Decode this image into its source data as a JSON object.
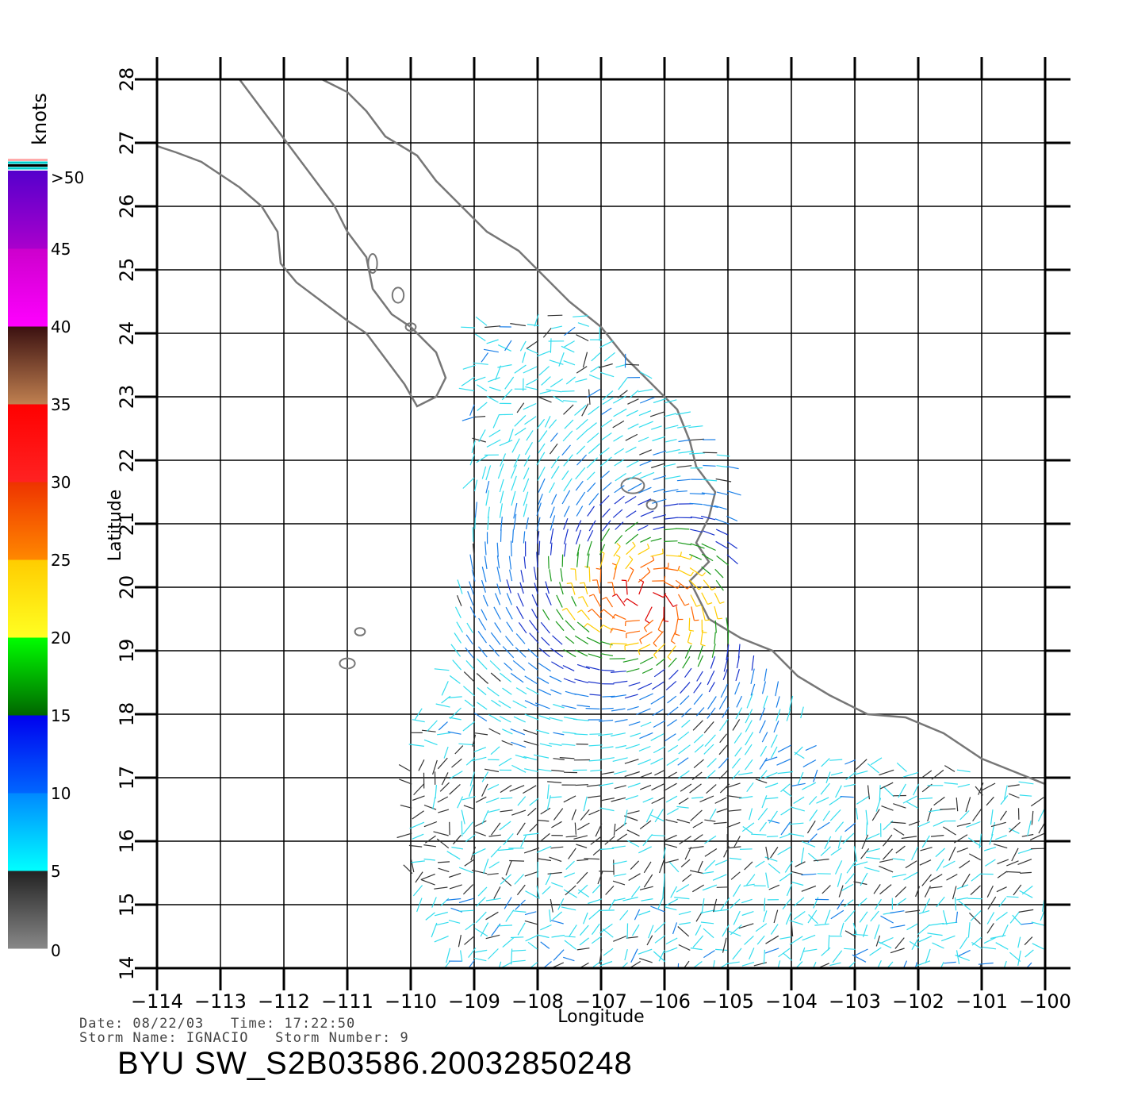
{
  "map": {
    "lon_ticks": [
      -114,
      -113,
      -112,
      -111,
      -110,
      -109,
      -108,
      -107,
      -106,
      -105,
      -104,
      -103,
      -102,
      -101,
      -100
    ],
    "lat_ticks": [
      14,
      15,
      16,
      17,
      18,
      19,
      20,
      21,
      22,
      23,
      24,
      25,
      26,
      27,
      28
    ],
    "lon_labels": [
      "−114",
      "−113",
      "−112",
      "−111",
      "−110",
      "−109",
      "−108",
      "−107",
      "−106",
      "−105",
      "−104",
      "−103",
      "−102",
      "−101",
      "−100"
    ],
    "lat_labels": [
      "14",
      "15",
      "16",
      "17",
      "18",
      "19",
      "20",
      "21",
      "22",
      "23",
      "24",
      "25",
      "26",
      "27",
      "28"
    ],
    "xlabel": "Longitude",
    "ylabel": "Latitude",
    "coastline_color": "#777777"
  },
  "colorbar": {
    "unit_label": "knots",
    "labels": [
      ">50",
      "45",
      "40",
      "35",
      "30",
      "25",
      "20",
      "15",
      "10",
      "5",
      "0"
    ],
    "segments": [
      {
        "from": 0,
        "to": 5,
        "colors": [
          "#888888",
          "#222222"
        ]
      },
      {
        "from": 5,
        "to": 10,
        "colors": [
          "#00ffff",
          "#0088ff"
        ]
      },
      {
        "from": 10,
        "to": 15,
        "colors": [
          "#0066ff",
          "#0000ee"
        ]
      },
      {
        "from": 15,
        "to": 20,
        "colors": [
          "#006600",
          "#00ff00"
        ]
      },
      {
        "from": 20,
        "to": 25,
        "colors": [
          "#ffff22",
          "#ffcc00"
        ]
      },
      {
        "from": 25,
        "to": 30,
        "colors": [
          "#ff8800",
          "#ee3300"
        ]
      },
      {
        "from": 30,
        "to": 35,
        "colors": [
          "#ff2222",
          "#ff0000"
        ]
      },
      {
        "from": 35,
        "to": 40,
        "colors": [
          "#c08050",
          "#3a1010"
        ]
      },
      {
        "from": 40,
        "to": 45,
        "colors": [
          "#ff00ff",
          "#cc00cc"
        ]
      },
      {
        "from": 45,
        "to": 50,
        "colors": [
          "#aa00cc",
          "#5500cc"
        ]
      }
    ]
  },
  "info": {
    "date_line": "Date: 08/22/03   Time: 17:22:50",
    "storm_line": "Storm Name: IGNACIO   Storm Number: 9",
    "product_id": "BYU SW_S2B03586.20032850248"
  },
  "wind_field": {
    "storm_center": [
      -106.3,
      19.8
    ],
    "speed_colors": [
      "#333333",
      "#33ddee",
      "#1a7fe8",
      "#1a33cc",
      "#1a9a1a",
      "#ffcc00",
      "#ff6600",
      "#dd0000",
      "#aa00cc"
    ]
  }
}
